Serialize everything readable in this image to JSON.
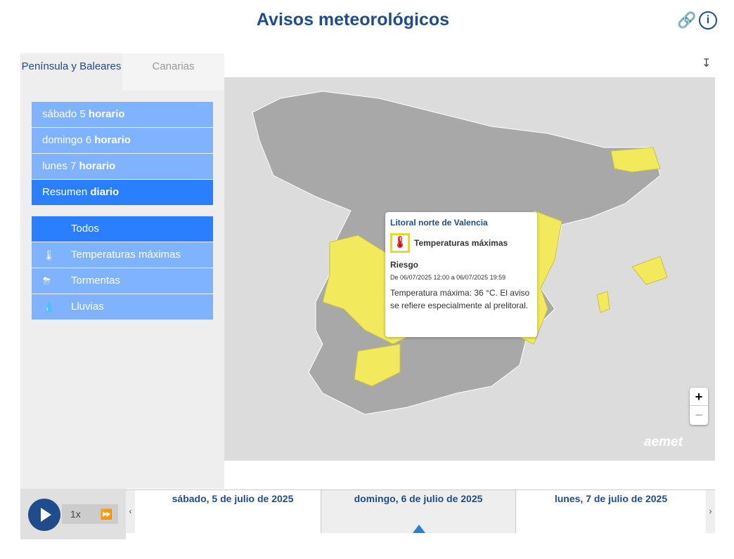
{
  "header": {
    "title": "Avisos meteorológicos",
    "link_icon": "link-icon",
    "info_icon": "info-icon"
  },
  "tabs": [
    {
      "label": "Península y Baleares",
      "active": true
    },
    {
      "label": "Canarias",
      "active": false
    }
  ],
  "days_menu": [
    {
      "pre": "sábado 5",
      "bold": "horario"
    },
    {
      "pre": "domingo 6",
      "bold": "horario"
    },
    {
      "pre": "lunes 7",
      "bold": "horario"
    },
    {
      "pre": "Resumen",
      "bold": "diario",
      "selected": true
    }
  ],
  "phenomena": [
    {
      "label": "Todos",
      "icon": "",
      "selected": true
    },
    {
      "label": "Temperaturas máximas",
      "icon": "thermometer-icon"
    },
    {
      "label": "Tormentas",
      "icon": "storm-icon"
    },
    {
      "label": "Lluvias",
      "icon": "rain-icon"
    }
  ],
  "popup": {
    "zone": "Litoral norte de Valencia",
    "phenomenon": "Temperaturas máximas",
    "level_label": "Riesgo",
    "period": "De 06/07/2025 12:00 a 06/07/2025 19:59",
    "text": "Temperatura máxima: 36 °C. El aviso se refiere especialmente al prelitoral.",
    "warning_color": "#e6d92b"
  },
  "map": {
    "zoom_in": "+",
    "zoom_out": "−",
    "logo": "aemet",
    "warning_color": "#f2ea5c"
  },
  "player": {
    "speed": "1x"
  },
  "timeline": {
    "days": [
      "sábado, 5 de julio de 2025",
      "domingo, 6 de julio de 2025",
      "lunes, 7 de julio de 2025"
    ],
    "current_index": 1,
    "prev": "‹",
    "next": "›"
  }
}
